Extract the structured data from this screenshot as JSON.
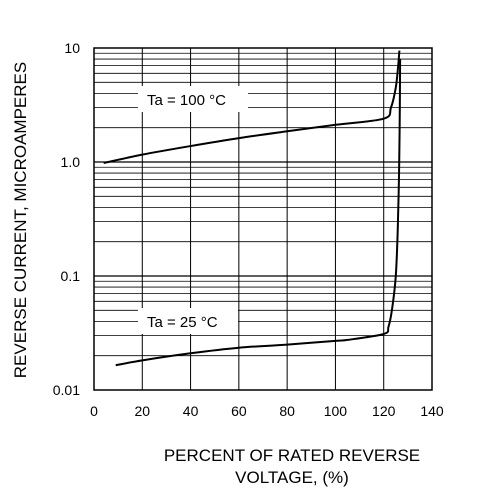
{
  "chart_data": {
    "type": "line",
    "xlabel_lines": [
      "PERCENT OF RATED REVERSE",
      "VOLTAGE, (%)"
    ],
    "ylabel": "REVERSE CURRENT, MICROAMPERES",
    "xlim": [
      0,
      140
    ],
    "ylim": [
      0.01,
      10
    ],
    "yscale": "log",
    "grid": true,
    "x_ticks": [
      "0",
      "20",
      "40",
      "60",
      "80",
      "100",
      "120",
      "140"
    ],
    "y_ticks": [
      "0.01",
      "0.1",
      "1.0",
      "10"
    ],
    "series": [
      {
        "name": "Ta = 100 °C",
        "label": "Ta = 100 °C",
        "x": [
          4,
          20,
          40,
          60,
          80,
          100,
          120,
          123,
          125,
          126,
          126.5
        ],
        "y": [
          0.98,
          1.16,
          1.38,
          1.62,
          1.86,
          2.12,
          2.4,
          3.0,
          4.5,
          7.0,
          9.5
        ]
      },
      {
        "name": "Ta = 25 °C",
        "label": "Ta = 25 °C",
        "x": [
          9,
          20,
          40,
          60,
          80,
          100,
          105,
          120,
          122,
          123.5,
          125,
          125.8,
          126.3,
          126.6,
          126.8
        ],
        "y": [
          0.0165,
          0.0182,
          0.021,
          0.0235,
          0.025,
          0.027,
          0.0275,
          0.031,
          0.036,
          0.052,
          0.1,
          0.25,
          0.7,
          2.0,
          8.0
        ]
      }
    ]
  }
}
